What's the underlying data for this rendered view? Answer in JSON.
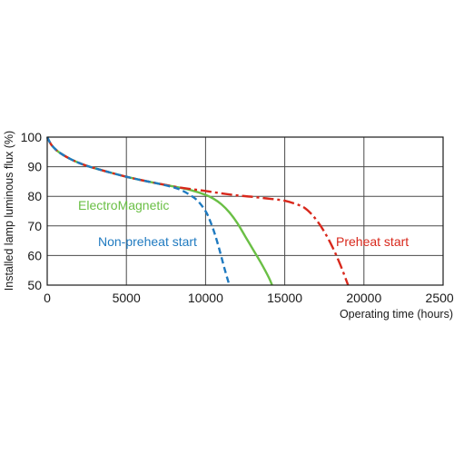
{
  "chart_data": {
    "type": "line",
    "title": "",
    "xlabel": "Operating time (hours)",
    "ylabel": "Installed lamp luminous flux  (%)",
    "xlim": [
      0,
      25000
    ],
    "ylim": [
      50,
      100
    ],
    "x_ticks": [
      0,
      5000,
      10000,
      15000,
      20000,
      25000
    ],
    "y_ticks": [
      50,
      60,
      70,
      80,
      90,
      100
    ],
    "grid": true,
    "series": [
      {
        "name": "ElectroMagnetic",
        "color": "#6abf45",
        "dash": "solid",
        "x": [
          0,
          250,
          600,
          1000,
          1500,
          2000,
          2500,
          3000,
          4000,
          5000,
          6000,
          7000,
          8000,
          9000,
          10000,
          10500,
          11000,
          11500,
          12000,
          12500,
          13000,
          13500,
          14000,
          14200
        ],
        "y": [
          100,
          97.5,
          95.5,
          94,
          92.5,
          91.3,
          90.3,
          89.5,
          88,
          86.6,
          85.4,
          84.3,
          83.3,
          82.2,
          80.5,
          79.2,
          77.3,
          74.6,
          71,
          66.5,
          62,
          57.5,
          52.5,
          50
        ]
      },
      {
        "name": "Non-preheat start",
        "color": "#1f7ac0",
        "dash": "dashed",
        "x": [
          0,
          250,
          600,
          1000,
          1500,
          2000,
          2500,
          3000,
          4000,
          5000,
          6000,
          7000,
          8000,
          8500,
          9000,
          9500,
          10000,
          10300,
          10600,
          10900,
          11200,
          11500
        ],
        "y": [
          100,
          97.5,
          95.5,
          94,
          92.5,
          91.3,
          90.3,
          89.5,
          88,
          86.6,
          85.4,
          84.3,
          83,
          82,
          80.5,
          78.5,
          75,
          71.5,
          67,
          61.5,
          55.5,
          50
        ]
      },
      {
        "name": "Preheat start",
        "color": "#d8281c",
        "dash": "dashdot",
        "x": [
          0,
          250,
          600,
          1000,
          1500,
          2000,
          2500,
          3000,
          4000,
          5000,
          6000,
          7000,
          8000,
          9000,
          10000,
          11000,
          12000,
          13000,
          14000,
          15000,
          16000,
          16500,
          17000,
          17500,
          18000,
          18500,
          19000
        ],
        "y": [
          100,
          97.5,
          95.5,
          94,
          92.5,
          91.3,
          90.3,
          89.5,
          88,
          86.6,
          85.4,
          84.3,
          83.3,
          82.5,
          81.8,
          81,
          80.3,
          79.8,
          79.2,
          78.5,
          76.8,
          75,
          72,
          68,
          63,
          57,
          50
        ]
      }
    ],
    "annotations": [
      {
        "text": "ElectroMagnetic",
        "color": "#6abf45"
      },
      {
        "text": "Non-preheat start",
        "color": "#1f7ac0"
      },
      {
        "text": "Preheat start",
        "color": "#d8281c"
      }
    ]
  }
}
